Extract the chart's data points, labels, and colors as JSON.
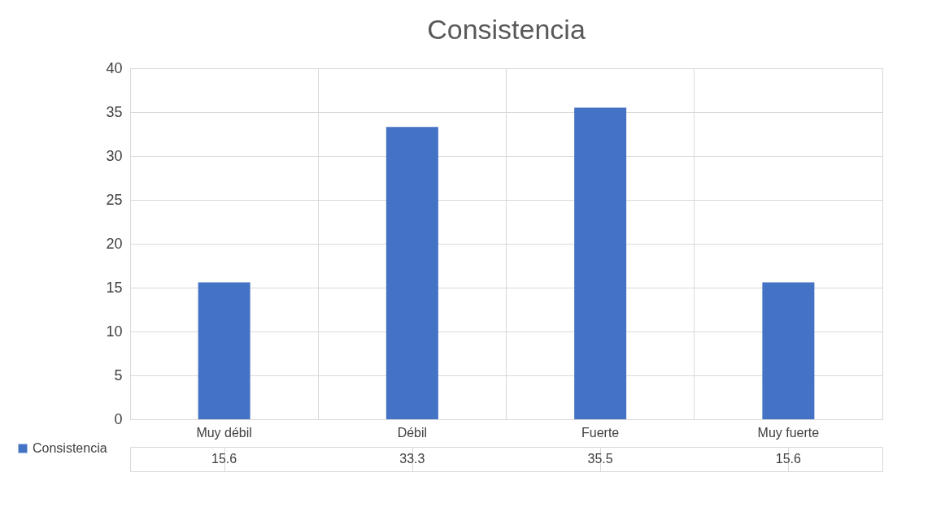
{
  "chart_data": {
    "type": "bar",
    "title": "Consistencia",
    "categories": [
      "Muy débil",
      "Débil",
      "Fuerte",
      "Muy fuerte"
    ],
    "series": [
      {
        "name": "Consistencia",
        "color": "#4472c4",
        "values": [
          15.6,
          33.3,
          35.5,
          15.6
        ]
      }
    ],
    "ylim": [
      0,
      40
    ],
    "yticks": [
      0,
      5,
      10,
      15,
      20,
      25,
      30,
      35,
      40
    ],
    "grid": true,
    "legend": "bottom left",
    "data_labels": true
  }
}
